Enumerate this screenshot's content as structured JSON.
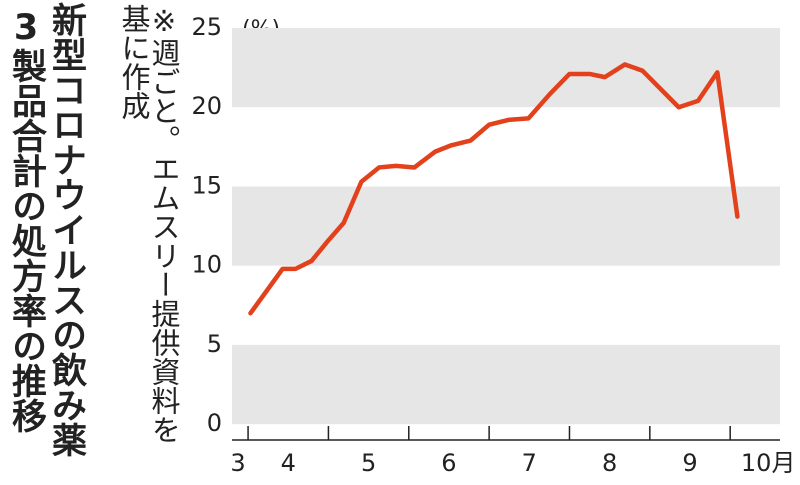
{
  "chart_data": {
    "type": "line",
    "title": [
      "新型コロナウイルスの飲み薬",
      "3製品合計の処方率の推移"
    ],
    "note": [
      "※週ごと。エムスリー提供資料を",
      "基に作成"
    ],
    "y_unit": "(%)",
    "x": [
      4.03,
      4.43,
      4.59,
      4.79,
      5.0,
      5.19,
      5.41,
      5.63,
      5.84,
      6.07,
      6.33,
      6.53,
      6.77,
      7.0,
      7.24,
      7.49,
      7.75,
      8.0,
      8.25,
      8.44,
      8.69,
      8.91,
      9.36,
      9.6,
      9.84,
      10.09
    ],
    "series": [
      {
        "color": "#e2411c",
        "values": [
          7.0,
          9.8,
          9.8,
          10.3,
          11.6,
          12.7,
          15.3,
          16.2,
          16.3,
          16.2,
          17.2,
          17.6,
          17.9,
          18.9,
          19.2,
          19.3,
          20.8,
          22.1,
          22.1,
          21.9,
          22.7,
          22.3,
          20.0,
          20.4,
          22.2,
          13.1
        ]
      }
    ],
    "xlim": [
      3.8,
      10.62
    ],
    "xticks": [
      4,
      5,
      6,
      7,
      8,
      9,
      10
    ],
    "month_labels": [
      "3",
      "4",
      "5",
      "6",
      "7",
      "8",
      "9",
      "10月"
    ],
    "ylim": [
      -1,
      25
    ],
    "yticks": [
      0,
      5,
      10,
      15,
      20,
      25
    ],
    "band_color": "#e6e6e6"
  }
}
